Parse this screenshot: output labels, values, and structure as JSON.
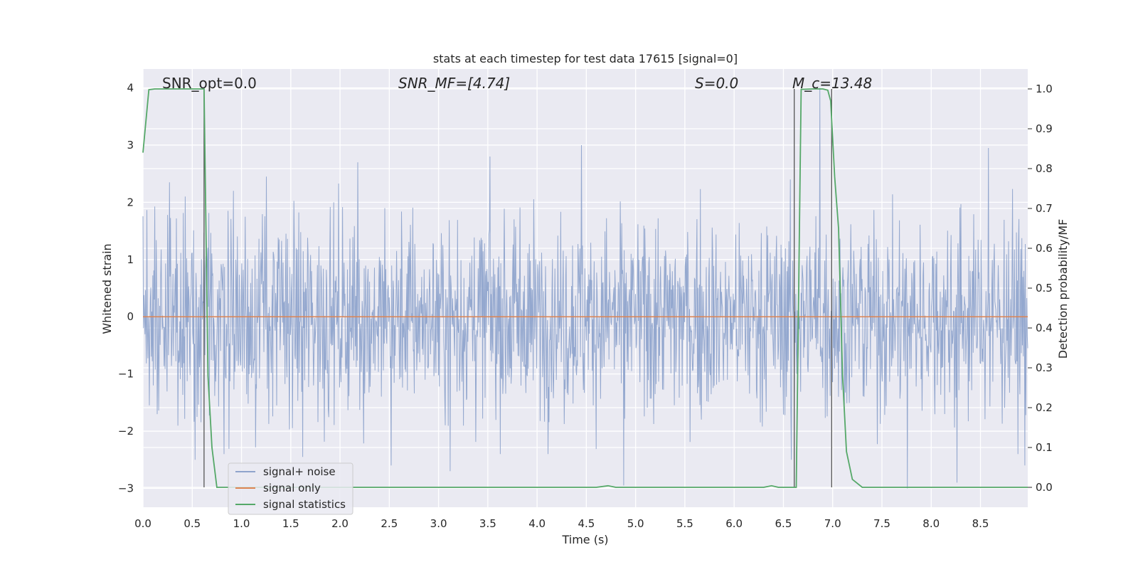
{
  "chart_data": {
    "type": "line",
    "title": "stats at each timestep for test data 17615 [signal=0]",
    "xlabel": "Time (s)",
    "ylabel_left": "Whitened strain",
    "ylabel_right": "Detection probability/MF",
    "xlim": [
      0.0,
      8.98
    ],
    "ylim_left": [
      -3.33,
      4.33
    ],
    "ylim_right": [
      -0.05,
      1.05
    ],
    "x_ticks": [
      "0.0",
      "0.5",
      "1.0",
      "1.5",
      "2.0",
      "2.5",
      "3.0",
      "3.5",
      "4.0",
      "4.5",
      "5.0",
      "5.5",
      "6.0",
      "6.5",
      "7.0",
      "7.5",
      "8.0",
      "8.5"
    ],
    "y_ticks_left": [
      "−3",
      "−2",
      "−1",
      "0",
      "1",
      "2",
      "3",
      "4"
    ],
    "y_ticks_right": [
      "0.0",
      "0.1",
      "0.2",
      "0.3",
      "0.4",
      "0.5",
      "0.6",
      "0.7",
      "0.8",
      "0.9",
      "1.0"
    ],
    "grid": true,
    "annotations": [
      {
        "id": "snr_opt",
        "text": "SNR_opt=0.0"
      },
      {
        "id": "snr_mf",
        "text": "SNR_MF=[4.74]"
      },
      {
        "id": "s_stat",
        "text": "S=0.0"
      },
      {
        "id": "mc",
        "text": "M_c=13.48"
      }
    ],
    "vertical_markers_x": [
      0.62,
      6.61,
      6.99
    ],
    "legend": {
      "placement": "lower-left",
      "entries": [
        "signal+ noise",
        "signal only",
        "signal statistics"
      ]
    },
    "series": [
      {
        "name": "signal+ noise",
        "axis": "left",
        "color": "#8fa4cc",
        "note_values": "dense noise, approx range -2.9 to 4.0",
        "peaks": [
          [
            0.27,
            2.35
          ],
          [
            0.43,
            2.1
          ],
          [
            0.92,
            2.2
          ],
          [
            1.25,
            2.45
          ],
          [
            2.18,
            2.7
          ],
          [
            3.52,
            2.8
          ],
          [
            4.45,
            3.0
          ],
          [
            6.87,
            4.0
          ],
          [
            8.58,
            2.95
          ],
          [
            2.52,
            -2.6
          ],
          [
            3.12,
            -2.7
          ],
          [
            4.88,
            -2.95
          ],
          [
            6.58,
            -2.5
          ],
          [
            7.76,
            -3.0
          ],
          [
            8.26,
            -2.9
          ],
          [
            8.95,
            -2.6
          ],
          [
            0.53,
            -2.5
          ],
          [
            1.62,
            -2.45
          ]
        ]
      },
      {
        "name": "signal only",
        "axis": "left",
        "color": "#dd8452",
        "x": [
          0.0,
          8.98
        ],
        "y": [
          0.0,
          0.0
        ]
      },
      {
        "name": "signal statistics",
        "axis": "right",
        "color": "#55a868",
        "x": [
          0.0,
          0.06,
          0.12,
          0.2,
          0.3,
          0.4,
          0.5,
          0.55,
          0.6,
          0.62,
          0.66,
          0.7,
          0.75,
          0.8,
          1.0,
          2.0,
          3.0,
          4.0,
          4.6,
          4.72,
          4.8,
          5.0,
          6.0,
          6.3,
          6.38,
          6.45,
          6.5,
          6.6,
          6.63,
          6.68,
          6.8,
          6.9,
          6.95,
          6.98,
          7.02,
          7.06,
          7.1,
          7.14,
          7.2,
          7.3,
          8.0,
          8.98
        ],
        "y": [
          0.84,
          0.998,
          1.0,
          1.0,
          1.0,
          1.0,
          1.0,
          1.0,
          1.0,
          1.0,
          0.28,
          0.1,
          0.0,
          0.0,
          0.0,
          0.0,
          0.0,
          0.0,
          0.0,
          0.004,
          0.0,
          0.0,
          0.0,
          0.0,
          0.004,
          0.0,
          0.0,
          0.0,
          0.0,
          0.999,
          1.0,
          1.0,
          0.997,
          0.97,
          0.78,
          0.65,
          0.28,
          0.09,
          0.02,
          0.0,
          0.0,
          0.0
        ]
      }
    ]
  }
}
